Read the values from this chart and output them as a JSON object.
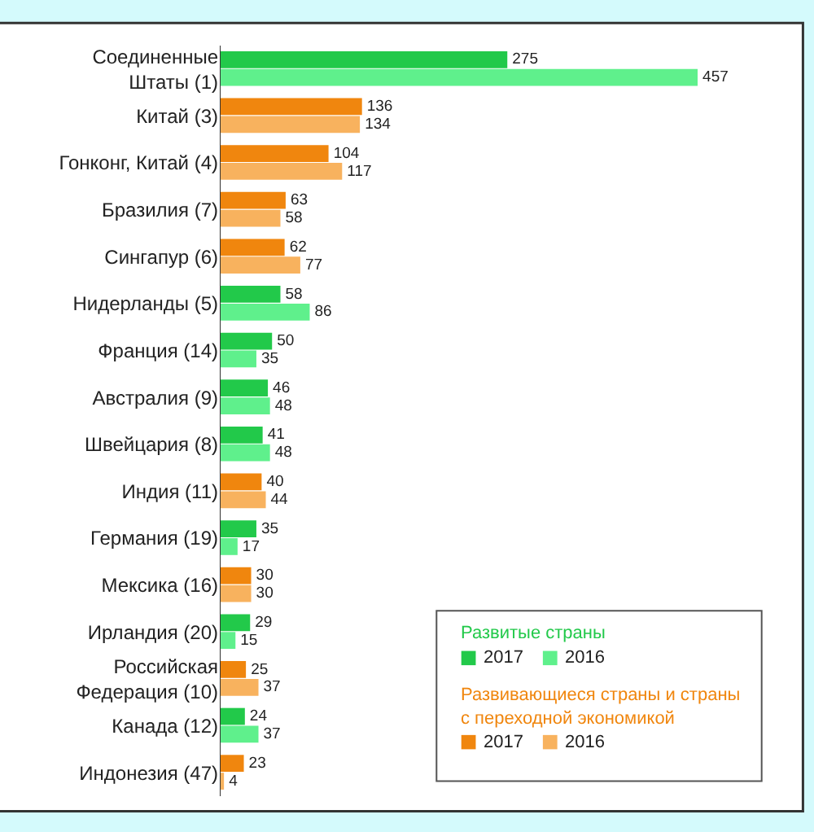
{
  "chart_data": {
    "type": "bar",
    "orientation": "horizontal",
    "data_labels": true,
    "legend": "bottom right",
    "categories": [
      "Соединенные\nШтаты (1)",
      "Китай (3)",
      "Гонконг, Китай (4)",
      "Бразилия (7)",
      "Сингапур (6)",
      "Нидерланды (5)",
      "Франция (14)",
      "Австралия (9)",
      "Швейцария (8)",
      "Индия (11)",
      "Германия (19)",
      "Мексика (16)",
      "Ирландия (20)",
      "Российская\nФедерация (10)",
      "Канада (12)",
      "Индонезия (47)"
    ],
    "annotations": [
      "Развитые страны",
      "Развивающиеся страны и страны\nс переходной экономикой"
    ],
    "series": [
      {
        "name": "2017",
        "color": "#22c94a",
        "values": [
          275,
          null,
          null,
          null,
          null,
          58,
          50,
          46,
          41,
          null,
          35,
          null,
          29,
          null,
          24,
          null
        ]
      },
      {
        "name": "2016",
        "color": "#5ff08c",
        "values": [
          457,
          null,
          null,
          null,
          null,
          86,
          35,
          48,
          48,
          null,
          17,
          null,
          15,
          null,
          37,
          null
        ]
      },
      {
        "name": "2017",
        "color": "#f0860e",
        "values": [
          null,
          136,
          104,
          63,
          62,
          null,
          null,
          null,
          null,
          40,
          null,
          30,
          null,
          25,
          null,
          23
        ]
      },
      {
        "name": "2016",
        "color": "#f8b25e",
        "values": [
          null,
          134,
          117,
          58,
          77,
          null,
          null,
          null,
          null,
          44,
          null,
          30,
          null,
          37,
          null,
          4
        ]
      }
    ]
  }
}
